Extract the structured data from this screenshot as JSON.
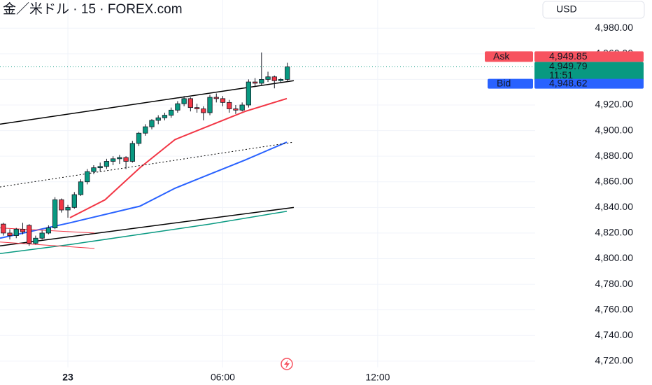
{
  "header": {
    "title": "金／米ドル · 15 · FOREX.com",
    "currency": "USD"
  },
  "chart_data": {
    "type": "candlestick",
    "x": [
      -2.5,
      -2.25,
      -2,
      -1.75,
      -1.5,
      -1.25,
      -1,
      -0.75,
      -0.5,
      -0.25,
      0,
      0.25,
      0.5,
      0.75,
      1,
      1.25,
      1.5,
      1.75,
      2,
      2.25,
      2.5,
      2.75,
      3,
      3.25,
      3.5,
      3.75,
      4,
      4.25,
      4.5,
      4.75,
      5,
      5.25,
      5.5,
      5.75,
      6,
      6.25,
      6.5,
      6.75,
      7,
      7.25,
      7.5,
      7.75,
      8,
      8.25,
      8.5
    ],
    "open": [
      4827,
      4820,
      4818,
      4823,
      4826,
      4812,
      4816,
      4820,
      4824,
      4846,
      4838,
      4840,
      4850,
      4860,
      4868,
      4871,
      4872,
      4876,
      4878,
      4879,
      4876,
      4890,
      4898,
      4903,
      4908,
      4910,
      4912,
      4916,
      4921,
      4925,
      4918,
      4917,
      4914,
      4926,
      4925,
      4922,
      4917,
      4916,
      4920,
      4938,
      4937,
      4940,
      4942,
      4939,
      4940
    ],
    "high": [
      4828,
      4823,
      4824,
      4828,
      4827,
      4818,
      4822,
      4826,
      4848,
      4847,
      4842,
      4852,
      4862,
      4870,
      4873,
      4875,
      4878,
      4880,
      4881,
      4880,
      4892,
      4899,
      4905,
      4909,
      4912,
      4914,
      4918,
      4923,
      4927,
      4926,
      4921,
      4919,
      4928,
      4929,
      4927,
      4924,
      4920,
      4922,
      4940,
      4941,
      4961,
      4946,
      4943,
      4941,
      4953
    ],
    "low": [
      4818,
      4815,
      4816,
      4819,
      4810,
      4811,
      4815,
      4819,
      4823,
      4836,
      4832,
      4839,
      4849,
      4858,
      4866,
      4868,
      4870,
      4873,
      4874,
      4870,
      4875,
      4888,
      4896,
      4901,
      4905,
      4908,
      4910,
      4914,
      4919,
      4915,
      4914,
      4908,
      4912,
      4922,
      4919,
      4914,
      4913,
      4915,
      4918,
      4934,
      4935,
      4938,
      4933,
      4937,
      4938
    ],
    "close": [
      4820,
      4818,
      4823,
      4821,
      4812,
      4816,
      4820,
      4824,
      4846,
      4838,
      4840,
      4850,
      4860,
      4868,
      4871,
      4872,
      4876,
      4878,
      4879,
      4876,
      4890,
      4898,
      4903,
      4908,
      4910,
      4912,
      4916,
      4921,
      4925,
      4918,
      4917,
      4914,
      4926,
      4925,
      4922,
      4917,
      4916,
      4920,
      4938,
      4937,
      4940,
      4942,
      4939,
      4940,
      4949.79
    ],
    "up_color": "#089981",
    "down_color": "#f23645",
    "xlim": [
      -2.63,
      18.1
    ],
    "xticks": [
      {
        "value": 0,
        "label": "23"
      },
      {
        "value": 6,
        "label": "06:00"
      },
      {
        "value": 12,
        "label": "12:00"
      }
    ],
    "ylim": [
      4715,
      5002
    ],
    "yticks": [
      {
        "value": 4720,
        "label": "4,720.00"
      },
      {
        "value": 4740,
        "label": "4,740.00"
      },
      {
        "value": 4760,
        "label": "4,760.00"
      },
      {
        "value": 4780,
        "label": "4,780.00"
      },
      {
        "value": 4800,
        "label": "4,800.00"
      },
      {
        "value": 4820,
        "label": "4,820.00"
      },
      {
        "value": 4840,
        "label": "4,840.00"
      },
      {
        "value": 4860,
        "label": "4,860.00"
      },
      {
        "value": 4880,
        "label": "4,880.00"
      },
      {
        "value": 4900,
        "label": "4,900.00"
      },
      {
        "value": 4920,
        "label": "4,920.00"
      },
      {
        "value": 4940,
        "label": "4,940.00"
      },
      {
        "value": 4960,
        "label": "4,960.00"
      },
      {
        "value": 4980,
        "label": "4,980.00"
      }
    ],
    "grid": true,
    "lines": [
      {
        "color": "#f23645",
        "width": 2,
        "x": [
          0.08,
          1.44,
          2.79,
          4.15,
          5.5,
          6.86,
          8.48
        ],
        "values": [
          4832,
          4846,
          4871,
          4893,
          4904,
          4915,
          4925
        ]
      },
      {
        "color": "#2962ff",
        "width": 2,
        "x": [
          -2.63,
          0.08,
          2.79,
          4.15,
          5.5,
          6.86,
          8.48
        ],
        "values": [
          4816,
          4828,
          4841,
          4855,
          4866,
          4877,
          4891
        ]
      },
      {
        "color": "#089981",
        "width": 1.5,
        "x": [
          -2.63,
          0.08,
          2.79,
          5.5,
          8.48
        ],
        "values": [
          4804,
          4811,
          4819,
          4827,
          4837
        ]
      },
      {
        "color": "#000000",
        "width": 1.5,
        "x": [
          -2.63,
          8.75
        ],
        "values": [
          4905,
          4939
        ]
      },
      {
        "color": "#000000",
        "width": 1.5,
        "x": [
          -2.63,
          8.75
        ],
        "values": [
          4810,
          4840
        ]
      },
      {
        "color": "#000000",
        "width": 1,
        "dash": true,
        "x": [
          -2.63,
          8.75
        ],
        "values": [
          4856,
          4891
        ]
      },
      {
        "color": "#f23645",
        "width": 1,
        "x": [
          -2.63,
          1.03
        ],
        "values": [
          4824,
          4820
        ]
      },
      {
        "color": "#f23645",
        "width": 1,
        "x": [
          -2.63,
          1.03
        ],
        "values": [
          4813,
          4808
        ]
      }
    ],
    "quotes": {
      "ask_label": "Ask",
      "ask": {
        "value": 4949.85,
        "label": "4,949.85"
      },
      "last": {
        "value": 4949.79,
        "label": "4,949.79"
      },
      "countdown": "11:51",
      "bid_label": "Bid",
      "bid": {
        "value": 4948.62,
        "label": "4,948.62"
      }
    }
  }
}
